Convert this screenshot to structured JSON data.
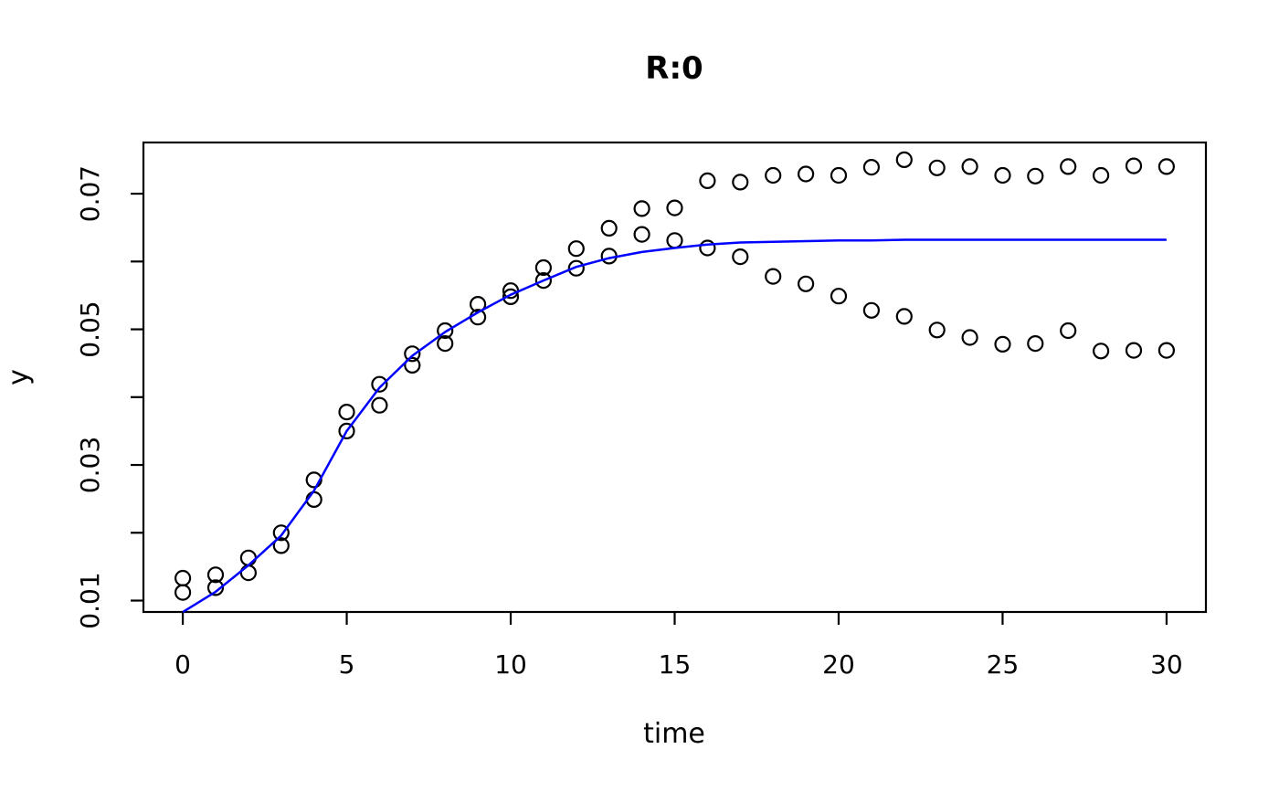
{
  "page": {
    "background_color": "#ffffff",
    "foreground_color": "#000000"
  },
  "chart_data": {
    "type": "scatter",
    "title": "R:0",
    "xlabel": "time",
    "ylabel": "y",
    "grid": false,
    "legend_position": "none",
    "xlim": [
      -1.2,
      31.2
    ],
    "ylim": [
      0.00832,
      0.07755
    ],
    "x_ticks": [
      0,
      5,
      10,
      15,
      20,
      25,
      30
    ],
    "x_tick_labels": [
      "0",
      "5",
      "10",
      "15",
      "20",
      "25",
      "30"
    ],
    "y_ticks": [
      0.01,
      0.02,
      0.03,
      0.04,
      0.05,
      0.06,
      0.07
    ],
    "y_labeled_ticks": [
      0.01,
      0.03,
      0.05,
      0.07
    ],
    "y_tick_labels": [
      "0.01",
      "0.03",
      "0.05",
      "0.07"
    ],
    "x": [
      0,
      1,
      2,
      3,
      4,
      5,
      6,
      7,
      8,
      9,
      10,
      11,
      12,
      13,
      14,
      15,
      16,
      17,
      18,
      19,
      20,
      21,
      22,
      23,
      24,
      25,
      26,
      27,
      28,
      29,
      30
    ],
    "series": [
      {
        "name": "observed-upper",
        "kind": "points",
        "marker": "open-circle",
        "color": "#000000",
        "values": [
          0.0133,
          0.0138,
          0.0163,
          0.02,
          0.0278,
          0.0378,
          0.0419,
          0.0464,
          0.0498,
          0.0537,
          0.0557,
          0.0591,
          0.0619,
          0.0649,
          0.0678,
          0.0679,
          0.0719,
          0.0717,
          0.0727,
          0.0729,
          0.0727,
          0.0739,
          0.075,
          0.0738,
          0.074,
          0.0727,
          0.0726,
          0.074,
          0.0727,
          0.0741,
          0.074
        ]
      },
      {
        "name": "observed-lower",
        "kind": "points",
        "marker": "open-circle",
        "color": "#000000",
        "values": [
          0.0112,
          0.0119,
          0.0141,
          0.0181,
          0.0249,
          0.035,
          0.0388,
          0.0447,
          0.0479,
          0.0518,
          0.0548,
          0.0572,
          0.059,
          0.0608,
          0.064,
          0.0631,
          0.062,
          0.0607,
          0.0578,
          0.0567,
          0.0549,
          0.0528,
          0.0519,
          0.0499,
          0.0488,
          0.0478,
          0.0479,
          0.0498,
          0.0468,
          0.0469,
          0.0469
        ]
      },
      {
        "name": "fitted-line",
        "kind": "line",
        "color": "#0000ff",
        "values": [
          0.0083,
          0.0113,
          0.0152,
          0.0196,
          0.0262,
          0.035,
          0.0414,
          0.0461,
          0.0496,
          0.0525,
          0.0551,
          0.0572,
          0.0592,
          0.0605,
          0.0614,
          0.062,
          0.0625,
          0.0628,
          0.0629,
          0.063,
          0.0631,
          0.0631,
          0.0632,
          0.0632,
          0.0632,
          0.0632,
          0.0632,
          0.0632,
          0.0632,
          0.0632,
          0.0632
        ]
      }
    ]
  }
}
